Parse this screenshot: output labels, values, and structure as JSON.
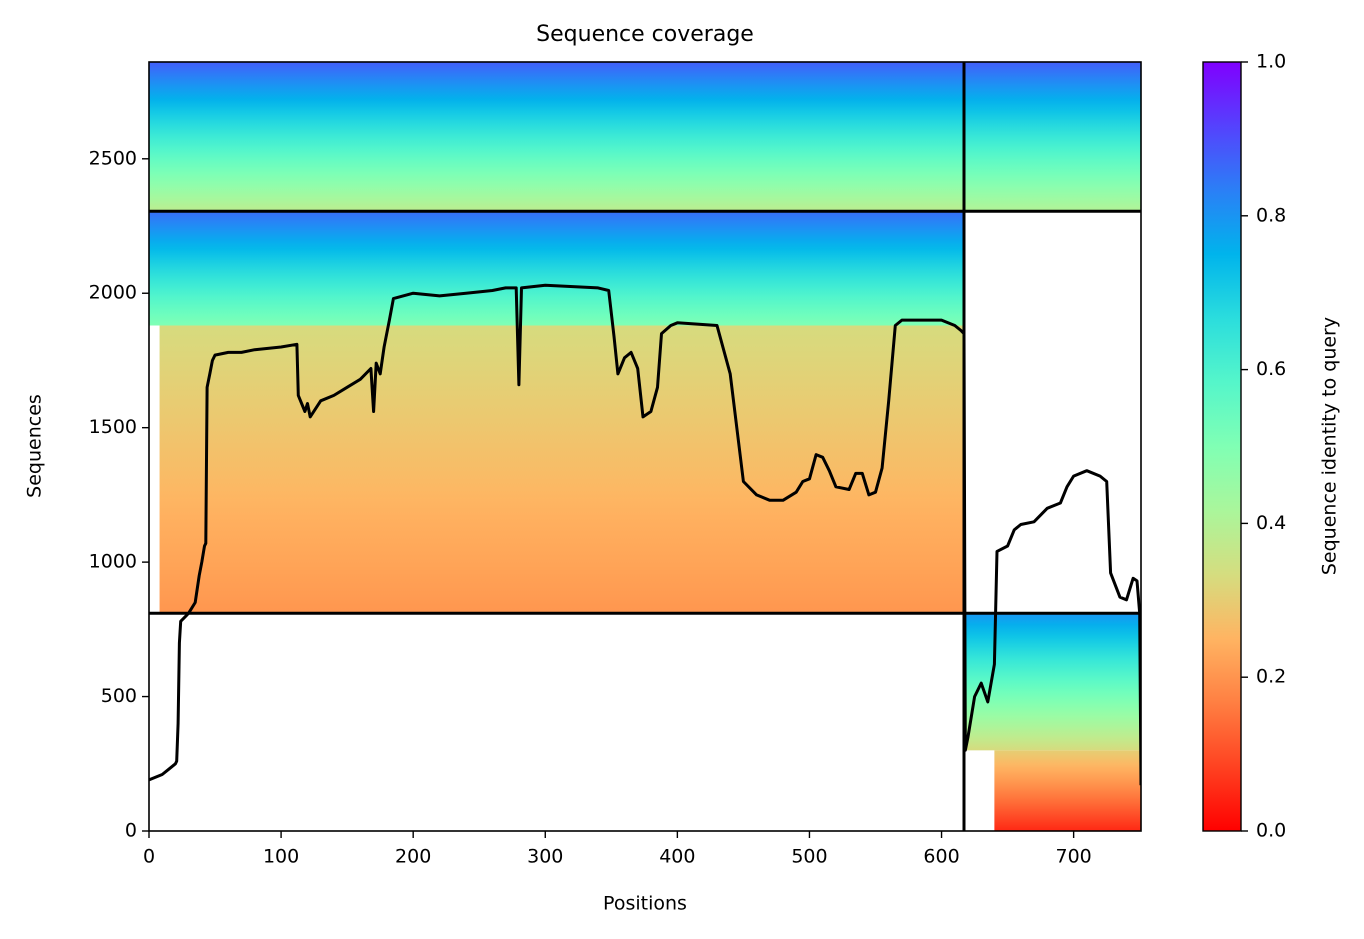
{
  "chart_data": {
    "type": "heatmap",
    "title": "Sequence coverage",
    "x_label": "Positions",
    "y_label": "Sequences",
    "xlim": [
      0,
      751
    ],
    "ylim": [
      0,
      2860
    ],
    "xticks": [
      0,
      100,
      200,
      300,
      400,
      500,
      600,
      700
    ],
    "yticks": [
      0,
      500,
      1000,
      1500,
      2000,
      2500
    ],
    "colorbar": {
      "label": "Sequence identity to query",
      "colormap": "rainbow_r",
      "lim": [
        0,
        1
      ],
      "ticks": [
        {
          "value": 0,
          "label": "0.0"
        },
        {
          "value": 0.2,
          "label": "0.2"
        },
        {
          "value": 0.4,
          "label": "0.4"
        },
        {
          "value": 0.6,
          "label": "0.6"
        },
        {
          "value": 0.8,
          "label": "0.8"
        },
        {
          "value": 1,
          "label": "1.0"
        }
      ]
    },
    "blocks": [
      {
        "x0": 0,
        "x1": 617,
        "y0": 2305,
        "y1": 2860,
        "identity_bottom": 0.38,
        "identity_top": 0.88
      },
      {
        "x0": 0,
        "x1": 617,
        "y0": 1880,
        "y1": 2305,
        "identity_bottom": 0.5,
        "identity_top": 0.86
      },
      {
        "x0": 8,
        "x1": 617,
        "y0": 810,
        "y1": 1880,
        "identity_bottom": 0.2,
        "identity_top": 0.33
      },
      {
        "x0": 617,
        "x1": 751,
        "y0": 2305,
        "y1": 2860,
        "identity_bottom": 0.4,
        "identity_top": 0.88
      },
      {
        "x0": 617,
        "x1": 751,
        "y0": 300,
        "y1": 810,
        "identity_bottom": 0.33,
        "identity_top": 0.8
      },
      {
        "x0": 640,
        "x1": 751,
        "y0": 0,
        "y1": 300,
        "identity_bottom": 0.05,
        "identity_top": 0.3
      }
    ],
    "dividers": {
      "x": [
        617
      ],
      "y": [
        810,
        2305
      ],
      "color": "#000000"
    },
    "line": {
      "color": "#000000",
      "x": [
        0,
        10,
        15,
        20,
        21,
        22,
        23,
        24,
        28,
        30,
        35,
        38,
        40,
        42,
        43,
        44,
        46,
        48,
        50,
        60,
        70,
        80,
        100,
        112,
        113,
        118,
        120,
        122,
        130,
        140,
        150,
        160,
        168,
        170,
        172,
        175,
        178,
        182,
        185,
        200,
        220,
        240,
        260,
        270,
        278,
        280,
        282,
        300,
        340,
        348,
        352,
        355,
        360,
        365,
        370,
        374,
        380,
        385,
        388,
        395,
        400,
        430,
        440,
        450,
        460,
        470,
        480,
        490,
        495,
        500,
        505,
        510,
        515,
        520,
        530,
        535,
        540,
        545,
        550,
        555,
        560,
        565,
        570,
        600,
        610,
        615,
        617,
        618,
        620,
        625,
        630,
        635,
        640,
        642,
        650,
        655,
        660,
        670,
        680,
        690,
        695,
        700,
        710,
        720,
        725,
        728,
        735,
        740,
        745,
        748,
        750,
        751
      ],
      "values": [
        190,
        210,
        230,
        250,
        260,
        400,
        700,
        780,
        800,
        810,
        850,
        950,
        1000,
        1060,
        1070,
        1650,
        1700,
        1750,
        1770,
        1780,
        1780,
        1790,
        1800,
        1810,
        1620,
        1560,
        1590,
        1540,
        1600,
        1620,
        1650,
        1680,
        1720,
        1560,
        1740,
        1700,
        1800,
        1900,
        1980,
        2000,
        1990,
        2000,
        2010,
        2020,
        2020,
        1660,
        2020,
        2030,
        2020,
        2010,
        1840,
        1700,
        1760,
        1780,
        1720,
        1540,
        1560,
        1650,
        1850,
        1880,
        1890,
        1880,
        1700,
        1300,
        1250,
        1230,
        1230,
        1260,
        1300,
        1310,
        1400,
        1390,
        1340,
        1280,
        1270,
        1330,
        1330,
        1250,
        1260,
        1350,
        1600,
        1880,
        1900,
        1900,
        1880,
        1860,
        1850,
        300,
        350,
        500,
        550,
        480,
        620,
        1040,
        1060,
        1120,
        1140,
        1150,
        1200,
        1220,
        1280,
        1320,
        1340,
        1320,
        1300,
        960,
        870,
        860,
        940,
        930,
        810,
        170
      ]
    }
  }
}
